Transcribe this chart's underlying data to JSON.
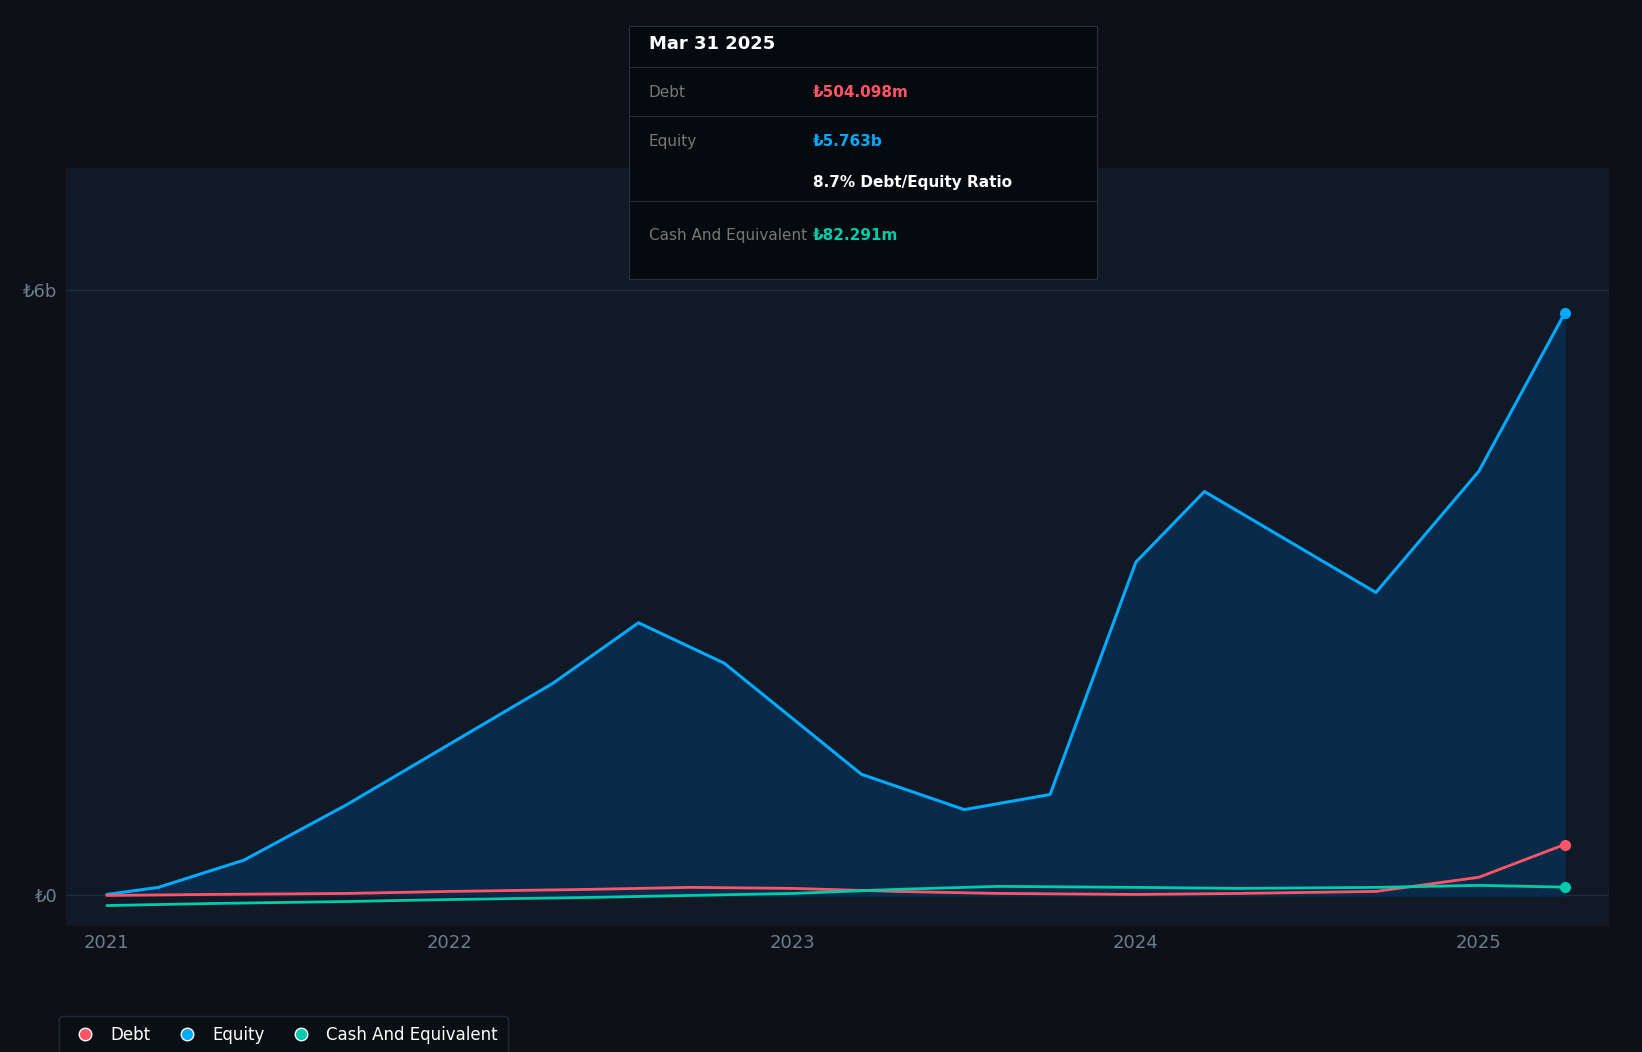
{
  "bg_color": "#0d1117",
  "plot_bg_color": "#111927",
  "grid_color": "#1e2d3d",
  "y_label_color": "#6b7f8f",
  "x_label_color": "#6b7f8f",
  "equity_color": "#00aaff",
  "equity_fill_color": "#0a2a4a",
  "debt_color": "#ff5566",
  "cash_color": "#00ccaa",
  "tooltip_bg": "#050a0e",
  "tooltip_border": "#2a3040",
  "ylim": [
    -300000000,
    7200000000
  ],
  "yticks": [
    0,
    6000000000
  ],
  "ytick_labels": [
    "₺0",
    "₺6b"
  ],
  "xtick_labels": [
    "2021",
    "2022",
    "2023",
    "2024",
    "2025"
  ],
  "legend_labels": [
    "Debt",
    "Equity",
    "Cash And Equivalent"
  ],
  "tooltip_title": "Mar 31 2025",
  "tooltip_debt": "₺504.098m",
  "tooltip_equity": "₺5.763b",
  "tooltip_ratio": "8.7% Debt/Equity Ratio",
  "tooltip_cash": "₺82.291m",
  "equity_x": [
    2021.0,
    2021.15,
    2021.4,
    2021.7,
    2022.0,
    2022.3,
    2022.55,
    2022.8,
    2023.0,
    2023.2,
    2023.5,
    2023.75,
    2024.0,
    2024.2,
    2024.45,
    2024.7,
    2025.0,
    2025.25
  ],
  "equity_y": [
    10000000,
    80000000,
    350000000,
    900000000,
    1500000000,
    2100000000,
    2700000000,
    2300000000,
    1750000000,
    1200000000,
    850000000,
    1000000000,
    3300000000,
    4000000000,
    3500000000,
    3000000000,
    4200000000,
    5763000000
  ],
  "debt_x": [
    2021.0,
    2021.3,
    2021.7,
    2022.0,
    2022.4,
    2022.7,
    2023.0,
    2023.3,
    2023.6,
    2024.0,
    2024.3,
    2024.7,
    2025.0,
    2025.25
  ],
  "debt_y": [
    0,
    10000000,
    20000000,
    40000000,
    60000000,
    80000000,
    70000000,
    40000000,
    20000000,
    10000000,
    20000000,
    40000000,
    180000000,
    504098000
  ],
  "cash_x": [
    2021.0,
    2021.3,
    2021.7,
    2022.0,
    2022.4,
    2022.7,
    2023.0,
    2023.3,
    2023.6,
    2024.0,
    2024.3,
    2024.7,
    2025.0,
    2025.25
  ],
  "cash_y": [
    -100000000,
    -80000000,
    -60000000,
    -40000000,
    -20000000,
    0,
    20000000,
    60000000,
    90000000,
    80000000,
    70000000,
    80000000,
    100000000,
    82291000
  ]
}
